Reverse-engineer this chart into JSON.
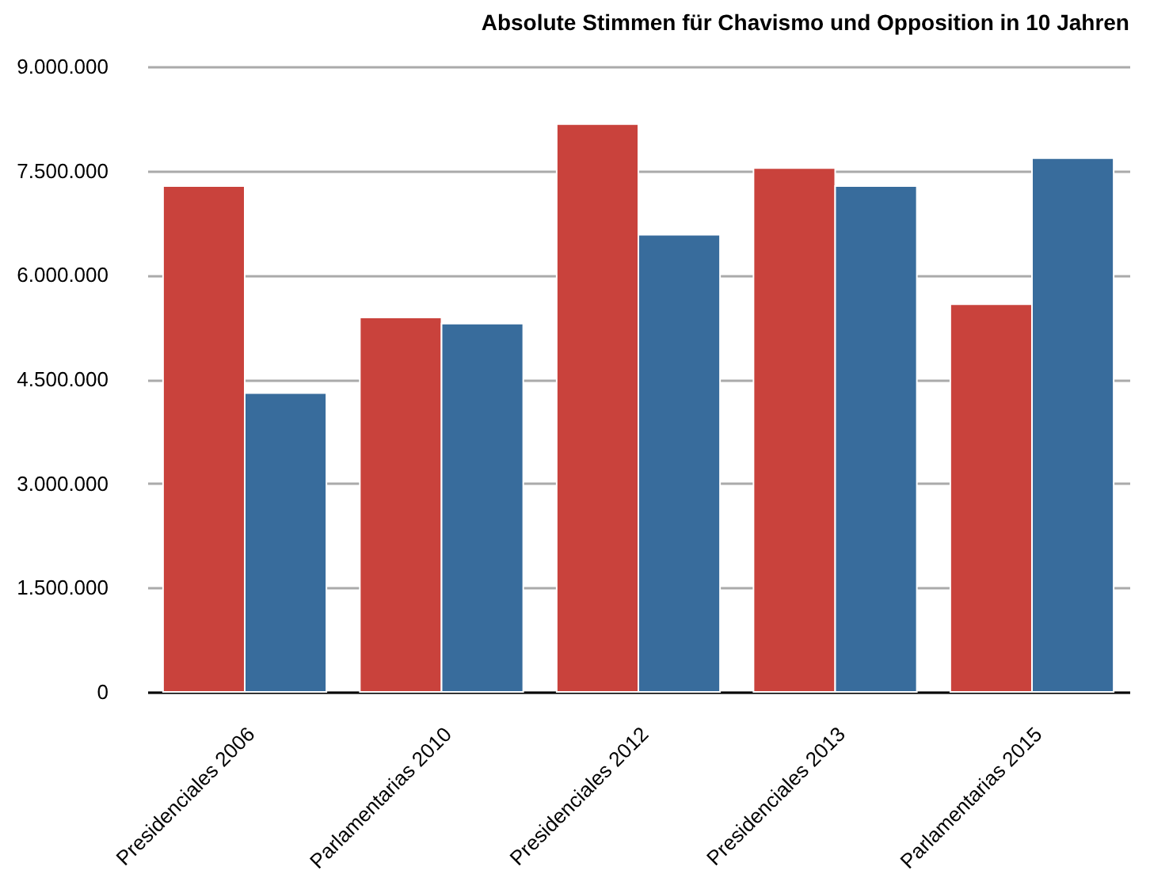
{
  "chart_data": {
    "type": "bar",
    "title": "Absolute Stimmen für Chavismo und Opposition in 10 Jahren",
    "categories": [
      "Presidenciales 2006",
      "Parlamentarias 2010",
      "Presidenciales 2012",
      "Presidenciales 2013",
      "Parlamentarias 2015"
    ],
    "series": [
      {
        "color": "#c9423c",
        "values": [
          7280000,
          5390000,
          8170000,
          7540000,
          5580000
        ]
      },
      {
        "color": "#386c9c",
        "values": [
          4300000,
          5300000,
          6580000,
          7280000,
          7680000
        ]
      }
    ],
    "ylim": [
      0,
      9000000
    ],
    "yticks": [
      {
        "value": 0,
        "label": "0"
      },
      {
        "value": 1500000,
        "label": "1.500.000"
      },
      {
        "value": 3000000,
        "label": "3.000.000"
      },
      {
        "value": 4500000,
        "label": "4.500.000"
      },
      {
        "value": 6000000,
        "label": "6.000.000"
      },
      {
        "value": 7500000,
        "label": "7.500.000"
      },
      {
        "value": 9000000,
        "label": "9.000.000"
      }
    ],
    "grid": "y"
  }
}
